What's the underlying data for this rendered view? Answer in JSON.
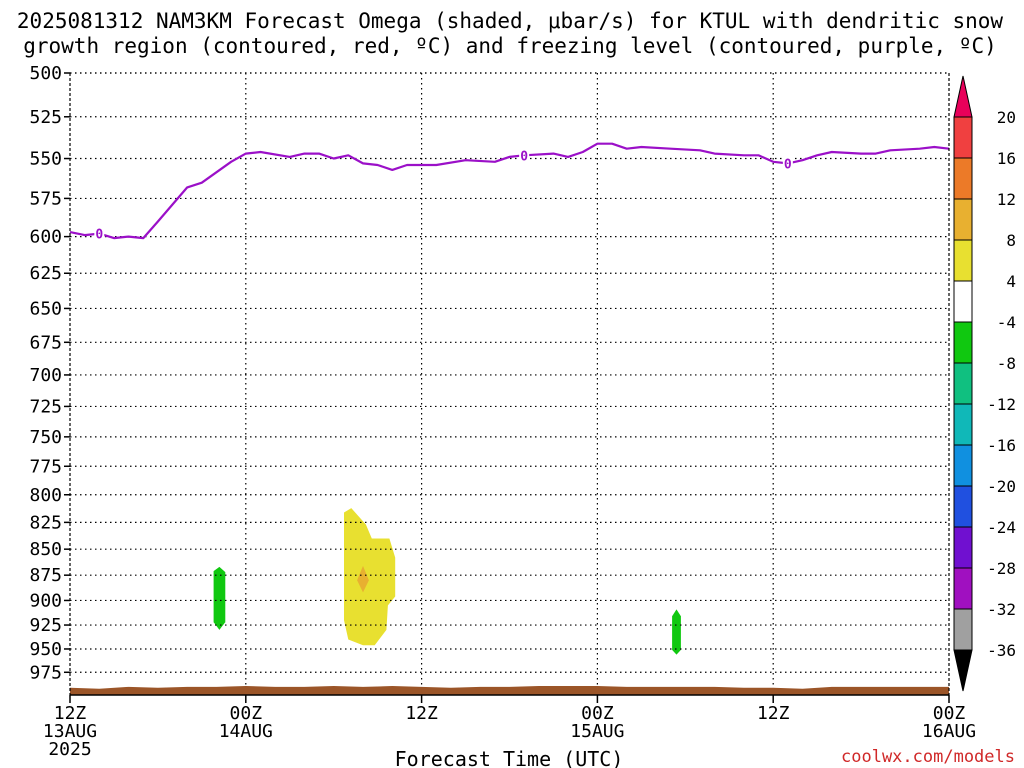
{
  "title_line1": "2025081312 NAM3KM Forecast Omega (shaded, μbar/s) for KTUL with dendritic snow",
  "title_line2": "growth region (contoured, red, ºC) and freezing level (contoured, purple, ºC)",
  "xlabel": "Forecast Time (UTC)",
  "credit": "coolwx.com/models",
  "colors": {
    "freezing_level": "#9b10c8",
    "terrain": "#9b5528",
    "grid": "#000000"
  },
  "chart_data": {
    "type": "heatmap",
    "y_ticks": [
      500,
      525,
      550,
      575,
      600,
      625,
      650,
      675,
      700,
      725,
      750,
      775,
      800,
      825,
      850,
      875,
      900,
      925,
      950,
      975
    ],
    "y_axis": {
      "unit": "hPa",
      "top": 500,
      "bottom": 1000,
      "inverted": true
    },
    "x_axis": {
      "start_hour": 0,
      "end_hour": 60
    },
    "x_ticks": [
      {
        "hour": 0,
        "time": "12Z",
        "date": "13AUG",
        "year": "2025"
      },
      {
        "hour": 12,
        "time": "00Z",
        "date": "14AUG",
        "year": ""
      },
      {
        "hour": 24,
        "time": "12Z",
        "date": "",
        "year": ""
      },
      {
        "hour": 36,
        "time": "00Z",
        "date": "15AUG",
        "year": ""
      },
      {
        "hour": 48,
        "time": "12Z",
        "date": "",
        "year": ""
      },
      {
        "hour": 60,
        "time": "00Z",
        "date": "16AUG",
        "year": ""
      }
    ],
    "grid": true,
    "colorbar": {
      "labels": [
        "20",
        "16",
        "12",
        "8",
        "4",
        "-4",
        "-8",
        "-12",
        "-16",
        "-20",
        "-24",
        "-28",
        "-32",
        "-36"
      ],
      "colors": [
        "#e8005a",
        "#f04040",
        "#ec7a28",
        "#e8b030",
        "#e8e030",
        "#ffffff",
        "#10c810",
        "#10c080",
        "#10b8b8",
        "#1090e0",
        "#2050e0",
        "#7010d0",
        "#a010c0",
        "#a0a0a0"
      ]
    },
    "freezing_level": {
      "label": "0",
      "points": [
        [
          0,
          597
        ],
        [
          1,
          599
        ],
        [
          2,
          598
        ],
        [
          3,
          601
        ],
        [
          4,
          600
        ],
        [
          5,
          601
        ],
        [
          6,
          590
        ],
        [
          8,
          568
        ],
        [
          9,
          565
        ],
        [
          11,
          552
        ],
        [
          12,
          547
        ],
        [
          13,
          546
        ],
        [
          15,
          549
        ],
        [
          16,
          547
        ],
        [
          17,
          547
        ],
        [
          18,
          550
        ],
        [
          19,
          548
        ],
        [
          20,
          553
        ],
        [
          21,
          554
        ],
        [
          22,
          557
        ],
        [
          23,
          554
        ],
        [
          25,
          554
        ],
        [
          27,
          551
        ],
        [
          29,
          552
        ],
        [
          30,
          549
        ],
        [
          31,
          548
        ],
        [
          33,
          547
        ],
        [
          34,
          549
        ],
        [
          35,
          546
        ],
        [
          36,
          541
        ],
        [
          37,
          541
        ],
        [
          38,
          544
        ],
        [
          39,
          543
        ],
        [
          41,
          544
        ],
        [
          43,
          545
        ],
        [
          44,
          547
        ],
        [
          46,
          548
        ],
        [
          47,
          548
        ],
        [
          48,
          552
        ],
        [
          49,
          553
        ],
        [
          50,
          551
        ],
        [
          51,
          548
        ],
        [
          52,
          546
        ],
        [
          54,
          547
        ],
        [
          55,
          547
        ],
        [
          56,
          545
        ],
        [
          58,
          544
        ],
        [
          59,
          543
        ],
        [
          60,
          544
        ]
      ],
      "label_positions": [
        2,
        31,
        49
      ]
    },
    "omega_regions": [
      {
        "name": "green-area-1",
        "value": "-4 to -8",
        "color": "#10c810",
        "points": [
          [
            9.8,
            871
          ],
          [
            10.2,
            867
          ],
          [
            10.6,
            872
          ],
          [
            10.6,
            922
          ],
          [
            10.2,
            930
          ],
          [
            9.8,
            922
          ]
        ]
      },
      {
        "name": "yellow-area",
        "value": "4 to 8",
        "color": "#e8e030",
        "points": [
          [
            18.7,
            816
          ],
          [
            19.2,
            812
          ],
          [
            20.2,
            827
          ],
          [
            20.6,
            840
          ],
          [
            21.8,
            840
          ],
          [
            22.2,
            858
          ],
          [
            22.2,
            896
          ],
          [
            21.7,
            905
          ],
          [
            21.6,
            930
          ],
          [
            20.8,
            946
          ],
          [
            20.0,
            946
          ],
          [
            19.0,
            940
          ],
          [
            18.7,
            920
          ],
          [
            18.7,
            880
          ],
          [
            18.7,
            840
          ]
        ]
      },
      {
        "name": "orange-area",
        "value": "8 to 12",
        "color": "#e8b030",
        "points": [
          [
            20.0,
            866
          ],
          [
            20.4,
            880
          ],
          [
            20.0,
            892
          ],
          [
            19.6,
            880
          ]
        ]
      },
      {
        "name": "green-area-2",
        "value": "-4 to -8",
        "color": "#10c810",
        "points": [
          [
            41.1,
            916
          ],
          [
            41.4,
            909
          ],
          [
            41.7,
            916
          ],
          [
            41.7,
            951
          ],
          [
            41.4,
            956
          ],
          [
            41.1,
            951
          ]
        ]
      }
    ],
    "terrain": {
      "points": [
        [
          0,
          992
        ],
        [
          2,
          993
        ],
        [
          4,
          991
        ],
        [
          6,
          992
        ],
        [
          8,
          991
        ],
        [
          10,
          991
        ],
        [
          12,
          990
        ],
        [
          14,
          991
        ],
        [
          16,
          991
        ],
        [
          18,
          990
        ],
        [
          20,
          991
        ],
        [
          22,
          990
        ],
        [
          24,
          991
        ],
        [
          26,
          992
        ],
        [
          28,
          991
        ],
        [
          30,
          991
        ],
        [
          32,
          990
        ],
        [
          34,
          990
        ],
        [
          36,
          990
        ],
        [
          38,
          991
        ],
        [
          40,
          991
        ],
        [
          42,
          991
        ],
        [
          44,
          991
        ],
        [
          46,
          992
        ],
        [
          48,
          992
        ],
        [
          50,
          993
        ],
        [
          52,
          991
        ],
        [
          54,
          991
        ],
        [
          56,
          991
        ],
        [
          58,
          991
        ],
        [
          60,
          991
        ]
      ]
    }
  }
}
